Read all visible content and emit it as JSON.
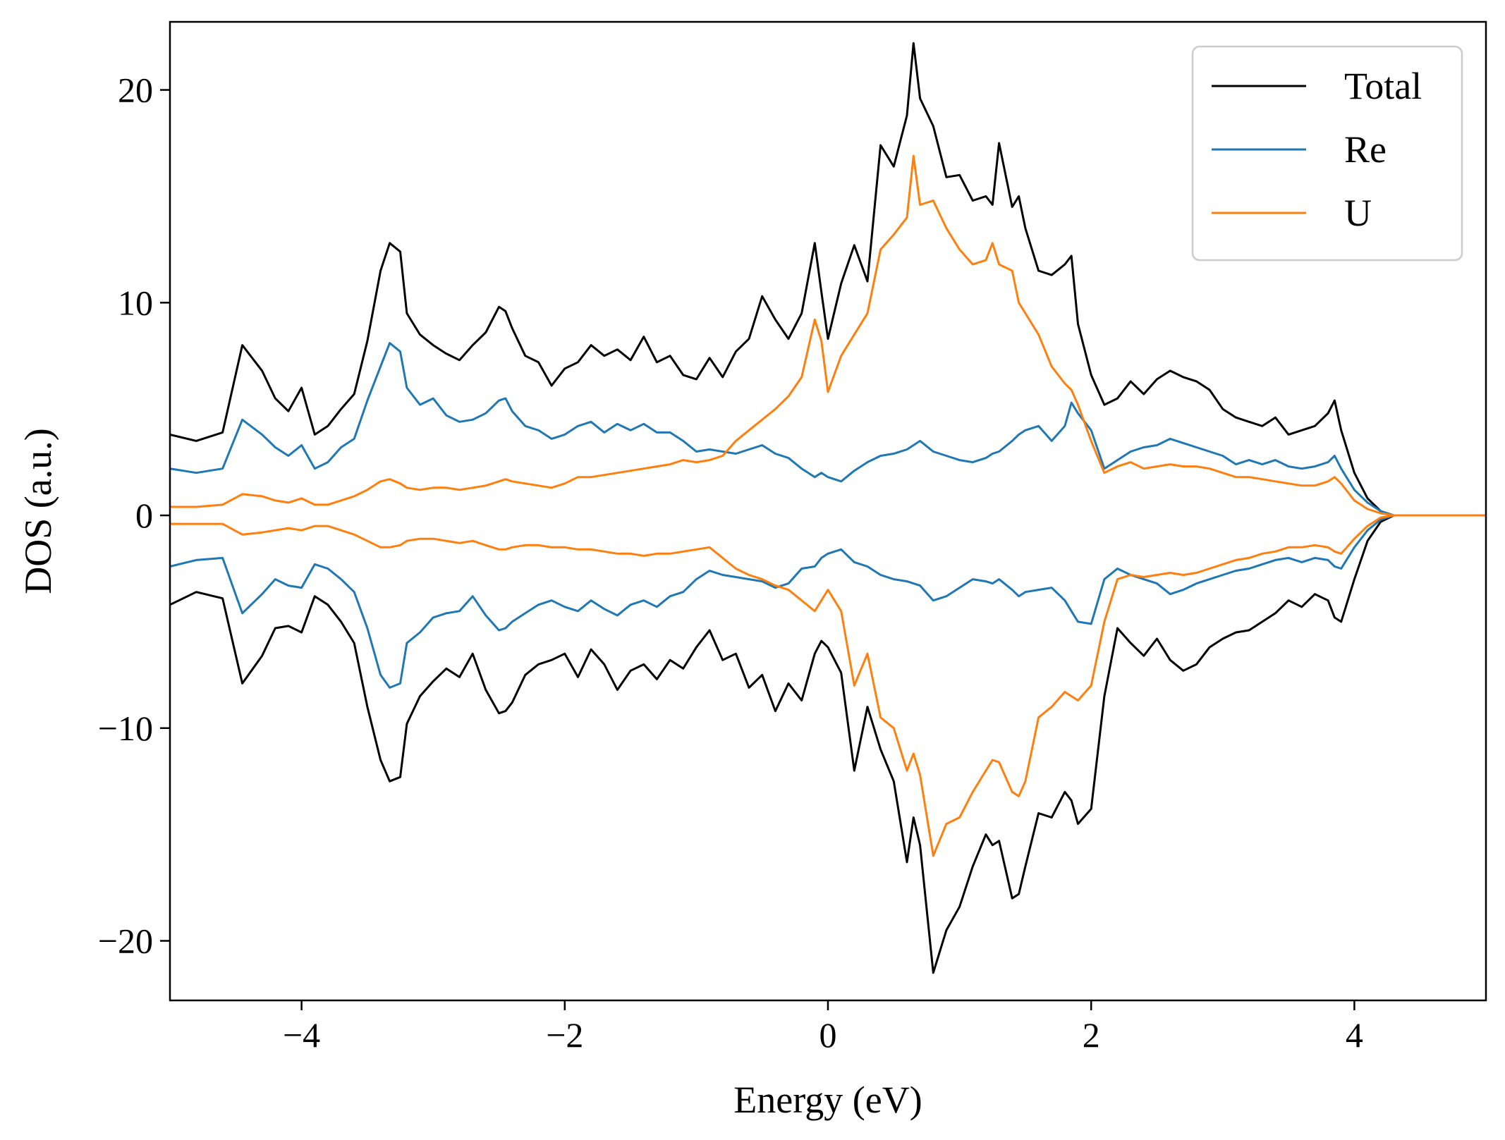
{
  "chart_data": {
    "type": "line",
    "title": "",
    "xlabel": "Energy (eV)",
    "ylabel": "DOS (a.u.)",
    "xlim": [
      -5,
      5
    ],
    "ylim": [
      -22.8,
      23.2
    ],
    "xticks": [
      -4,
      -2,
      0,
      2,
      4
    ],
    "xtick_labels": [
      "−4",
      "−2",
      "0",
      "2",
      "4"
    ],
    "yticks": [
      -20,
      -10,
      0,
      10,
      20
    ],
    "ytick_labels": [
      "−20",
      "−10",
      "0",
      "10",
      "20"
    ],
    "grid": false,
    "legend_position": "top-right",
    "x": [
      -5.0,
      -4.8,
      -4.6,
      -4.45,
      -4.3,
      -4.2,
      -4.1,
      -4.0,
      -3.9,
      -3.8,
      -3.7,
      -3.6,
      -3.5,
      -3.4,
      -3.33,
      -3.25,
      -3.2,
      -3.1,
      -3.0,
      -2.9,
      -2.8,
      -2.7,
      -2.6,
      -2.5,
      -2.45,
      -2.4,
      -2.3,
      -2.2,
      -2.1,
      -2.0,
      -1.9,
      -1.8,
      -1.7,
      -1.6,
      -1.5,
      -1.4,
      -1.3,
      -1.2,
      -1.1,
      -1.0,
      -0.9,
      -0.8,
      -0.7,
      -0.6,
      -0.5,
      -0.4,
      -0.3,
      -0.2,
      -0.1,
      -0.05,
      0.0,
      0.1,
      0.2,
      0.3,
      0.4,
      0.5,
      0.6,
      0.65,
      0.7,
      0.8,
      0.9,
      1.0,
      1.1,
      1.2,
      1.25,
      1.3,
      1.4,
      1.45,
      1.5,
      1.6,
      1.7,
      1.8,
      1.85,
      1.9,
      2.0,
      2.1,
      2.2,
      2.3,
      2.4,
      2.5,
      2.6,
      2.7,
      2.8,
      2.9,
      3.0,
      3.1,
      3.2,
      3.3,
      3.4,
      3.5,
      3.6,
      3.7,
      3.8,
      3.85,
      3.9,
      4.0,
      4.1,
      4.2,
      4.3,
      4.5,
      5.0
    ],
    "series": [
      {
        "name": "Total",
        "color": "#000000",
        "up": [
          3.8,
          3.5,
          3.9,
          8.0,
          6.8,
          5.5,
          4.9,
          6.0,
          3.8,
          4.2,
          5.0,
          5.7,
          8.2,
          11.5,
          12.8,
          12.4,
          9.5,
          8.5,
          8.0,
          7.6,
          7.3,
          8.0,
          8.6,
          9.8,
          9.6,
          8.8,
          7.5,
          7.2,
          6.1,
          6.9,
          7.2,
          8.0,
          7.5,
          7.8,
          7.3,
          8.4,
          7.2,
          7.5,
          6.6,
          6.4,
          7.4,
          6.5,
          7.7,
          8.3,
          10.3,
          9.2,
          8.3,
          9.5,
          12.8,
          10.5,
          8.3,
          10.9,
          12.7,
          11.0,
          17.4,
          16.4,
          18.8,
          22.2,
          19.6,
          18.3,
          15.9,
          16.0,
          14.8,
          15.0,
          14.6,
          17.5,
          14.5,
          15.0,
          13.5,
          11.5,
          11.3,
          11.8,
          12.2,
          9.0,
          6.6,
          5.2,
          5.5,
          6.3,
          5.7,
          6.4,
          6.8,
          6.5,
          6.3,
          5.9,
          5.0,
          4.6,
          4.4,
          4.2,
          4.6,
          3.8,
          4.0,
          4.2,
          4.8,
          5.4,
          4.0,
          2.0,
          0.8,
          0.2,
          0.0,
          0.0,
          0.0
        ],
        "down": [
          -4.2,
          -3.6,
          -3.9,
          -7.9,
          -6.6,
          -5.3,
          -5.2,
          -5.5,
          -3.8,
          -4.2,
          -5.0,
          -6.0,
          -9.0,
          -11.5,
          -12.5,
          -12.3,
          -9.8,
          -8.5,
          -7.8,
          -7.2,
          -7.6,
          -6.5,
          -8.2,
          -9.3,
          -9.2,
          -8.8,
          -7.5,
          -7.0,
          -6.8,
          -6.5,
          -7.6,
          -6.3,
          -7.0,
          -8.2,
          -7.3,
          -7.0,
          -7.7,
          -6.8,
          -7.2,
          -6.2,
          -5.4,
          -6.8,
          -6.5,
          -8.1,
          -7.5,
          -9.2,
          -7.9,
          -8.7,
          -6.5,
          -5.9,
          -6.2,
          -7.4,
          -12.0,
          -9.0,
          -11.0,
          -12.5,
          -16.3,
          -14.2,
          -15.5,
          -21.5,
          -19.5,
          -18.4,
          -16.5,
          -15.0,
          -15.5,
          -15.3,
          -18.0,
          -17.8,
          -16.5,
          -14.0,
          -14.2,
          -13.0,
          -13.4,
          -14.5,
          -13.8,
          -8.5,
          -5.3,
          -6.0,
          -6.6,
          -5.8,
          -6.8,
          -7.3,
          -7.0,
          -6.2,
          -5.8,
          -5.5,
          -5.4,
          -5.0,
          -4.6,
          -4.0,
          -4.3,
          -3.7,
          -4.0,
          -4.8,
          -5.0,
          -3.0,
          -1.2,
          -0.3,
          0.0,
          0.0,
          0.0
        ]
      },
      {
        "name": "Re",
        "color": "#1f77b4",
        "up": [
          2.2,
          2.0,
          2.2,
          4.5,
          3.8,
          3.2,
          2.8,
          3.3,
          2.2,
          2.5,
          3.2,
          3.6,
          5.4,
          7.0,
          8.1,
          7.7,
          6.0,
          5.2,
          5.5,
          4.7,
          4.4,
          4.5,
          4.8,
          5.4,
          5.5,
          4.9,
          4.2,
          4.0,
          3.6,
          3.8,
          4.2,
          4.4,
          3.9,
          4.3,
          4.0,
          4.3,
          3.9,
          3.9,
          3.5,
          3.0,
          3.1,
          3.0,
          2.9,
          3.1,
          3.3,
          2.9,
          2.7,
          2.2,
          1.8,
          2.0,
          1.8,
          1.6,
          2.1,
          2.5,
          2.8,
          2.9,
          3.1,
          3.3,
          3.5,
          3.0,
          2.8,
          2.6,
          2.5,
          2.7,
          2.9,
          3.0,
          3.5,
          3.8,
          4.0,
          4.2,
          3.5,
          4.2,
          5.3,
          4.8,
          4.0,
          2.2,
          2.6,
          3.0,
          3.2,
          3.3,
          3.6,
          3.4,
          3.2,
          3.0,
          2.8,
          2.4,
          2.6,
          2.4,
          2.6,
          2.3,
          2.2,
          2.3,
          2.5,
          2.8,
          2.2,
          1.2,
          0.6,
          0.2,
          0.0,
          0.0,
          0.0
        ],
        "down": [
          -2.4,
          -2.1,
          -2.0,
          -4.6,
          -3.7,
          -3.0,
          -3.3,
          -3.4,
          -2.3,
          -2.5,
          -3.0,
          -3.6,
          -5.3,
          -7.5,
          -8.1,
          -7.9,
          -6.0,
          -5.5,
          -4.8,
          -4.6,
          -4.5,
          -3.8,
          -4.7,
          -5.4,
          -5.3,
          -5.0,
          -4.6,
          -4.2,
          -4.0,
          -4.3,
          -4.5,
          -4.0,
          -4.4,
          -4.7,
          -4.2,
          -4.0,
          -4.3,
          -3.8,
          -3.6,
          -3.0,
          -2.6,
          -2.8,
          -2.9,
          -3.0,
          -3.1,
          -3.4,
          -3.2,
          -2.5,
          -2.4,
          -2.0,
          -1.8,
          -1.6,
          -2.2,
          -2.4,
          -2.8,
          -3.0,
          -3.1,
          -3.2,
          -3.3,
          -4.0,
          -3.8,
          -3.4,
          -3.0,
          -3.1,
          -3.2,
          -3.0,
          -3.5,
          -3.8,
          -3.6,
          -3.5,
          -3.4,
          -4.0,
          -4.5,
          -5.0,
          -5.1,
          -3.0,
          -2.5,
          -2.8,
          -3.0,
          -3.2,
          -3.7,
          -3.5,
          -3.2,
          -3.0,
          -2.8,
          -2.6,
          -2.5,
          -2.3,
          -2.1,
          -2.0,
          -2.2,
          -2.0,
          -2.1,
          -2.4,
          -2.5,
          -1.5,
          -0.7,
          -0.2,
          0.0,
          0.0,
          0.0
        ]
      },
      {
        "name": "U",
        "color": "#ff7f0e",
        "up": [
          0.4,
          0.4,
          0.5,
          1.0,
          0.9,
          0.7,
          0.6,
          0.8,
          0.5,
          0.5,
          0.7,
          0.9,
          1.2,
          1.6,
          1.7,
          1.5,
          1.3,
          1.2,
          1.3,
          1.3,
          1.2,
          1.3,
          1.4,
          1.6,
          1.7,
          1.6,
          1.5,
          1.4,
          1.3,
          1.5,
          1.8,
          1.8,
          1.9,
          2.0,
          2.1,
          2.2,
          2.3,
          2.4,
          2.6,
          2.5,
          2.6,
          2.8,
          3.5,
          4.0,
          4.5,
          5.0,
          5.6,
          6.5,
          9.2,
          8.2,
          5.8,
          7.5,
          8.5,
          9.5,
          12.5,
          13.2,
          14.0,
          16.9,
          14.6,
          14.8,
          13.5,
          12.5,
          11.8,
          12.0,
          12.8,
          11.8,
          11.5,
          10.0,
          9.5,
          8.5,
          7.0,
          6.2,
          5.9,
          5.2,
          3.5,
          2.0,
          2.3,
          2.5,
          2.2,
          2.3,
          2.4,
          2.3,
          2.3,
          2.2,
          2.0,
          1.8,
          1.8,
          1.7,
          1.6,
          1.5,
          1.4,
          1.4,
          1.6,
          1.8,
          1.5,
          0.7,
          0.3,
          0.1,
          0.0,
          0.0,
          0.0
        ],
        "down": [
          -0.4,
          -0.4,
          -0.4,
          -0.9,
          -0.8,
          -0.7,
          -0.6,
          -0.7,
          -0.5,
          -0.5,
          -0.7,
          -0.9,
          -1.2,
          -1.5,
          -1.5,
          -1.4,
          -1.2,
          -1.1,
          -1.1,
          -1.2,
          -1.3,
          -1.2,
          -1.4,
          -1.6,
          -1.6,
          -1.5,
          -1.4,
          -1.4,
          -1.5,
          -1.5,
          -1.6,
          -1.6,
          -1.7,
          -1.8,
          -1.8,
          -1.9,
          -1.8,
          -1.8,
          -1.7,
          -1.6,
          -1.5,
          -2.0,
          -2.5,
          -2.8,
          -3.0,
          -3.3,
          -3.5,
          -4.0,
          -4.5,
          -4.0,
          -3.5,
          -4.5,
          -8.0,
          -6.5,
          -9.5,
          -10.0,
          -12.0,
          -11.2,
          -12.2,
          -16.0,
          -14.5,
          -14.2,
          -13.0,
          -12.0,
          -11.5,
          -11.6,
          -13.0,
          -13.2,
          -12.5,
          -9.5,
          -9.0,
          -8.3,
          -8.5,
          -8.7,
          -8.0,
          -5.0,
          -3.0,
          -2.8,
          -2.9,
          -2.8,
          -2.7,
          -2.8,
          -2.7,
          -2.5,
          -2.3,
          -2.1,
          -2.0,
          -1.8,
          -1.7,
          -1.5,
          -1.5,
          -1.4,
          -1.5,
          -1.7,
          -1.8,
          -1.1,
          -0.5,
          -0.1,
          0.0,
          0.0,
          0.0
        ]
      }
    ]
  }
}
